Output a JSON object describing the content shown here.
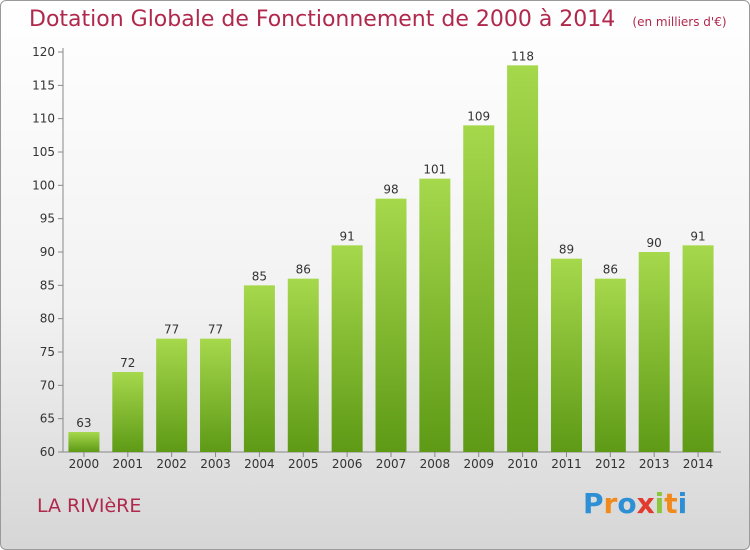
{
  "title": "Dotation Globale de Fonctionnement de 2000 à 2014",
  "subtitle": "(en milliers d'€)",
  "commune": "LA RIVIèRE",
  "logo": "Proxiti",
  "colors": {
    "title": "#b0294d",
    "bar_top": "#a6d84c",
    "bar_bottom": "#5e9a16"
  },
  "chart_data": {
    "type": "bar",
    "title": "Dotation Globale de Fonctionnement de 2000 à 2014",
    "subtitle": "(en milliers d'€)",
    "categories": [
      "2000",
      "2001",
      "2002",
      "2003",
      "2004",
      "2005",
      "2006",
      "2007",
      "2008",
      "2009",
      "2010",
      "2011",
      "2012",
      "2013",
      "2014"
    ],
    "values": [
      63,
      72,
      77,
      77,
      85,
      86,
      91,
      98,
      101,
      109,
      118,
      89,
      86,
      90,
      91
    ],
    "ylim": [
      60,
      120
    ],
    "yticks": [
      60,
      65,
      70,
      75,
      80,
      85,
      90,
      95,
      100,
      105,
      110,
      115,
      120
    ],
    "grid": false,
    "legend": "none"
  }
}
